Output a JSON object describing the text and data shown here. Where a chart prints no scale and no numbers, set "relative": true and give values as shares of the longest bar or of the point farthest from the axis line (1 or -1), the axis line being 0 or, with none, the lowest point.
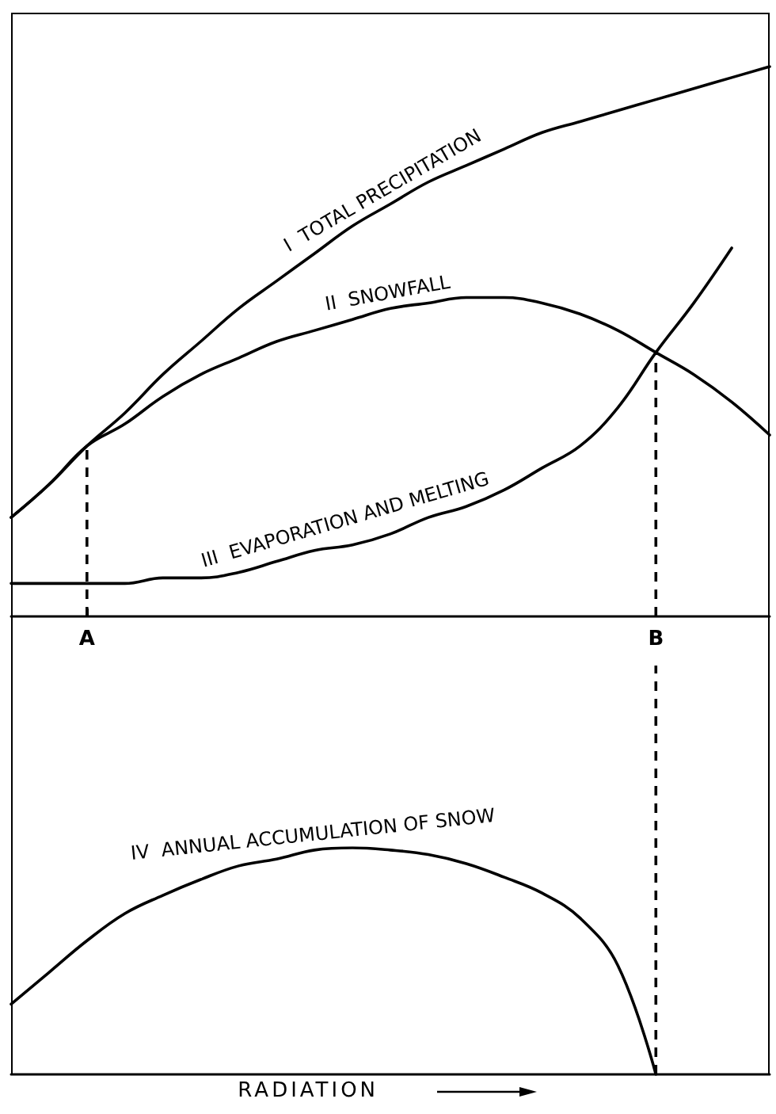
{
  "chart_data": [
    {
      "type": "line",
      "relative": true,
      "categories": [
        null,
        null,
        "A",
        null,
        null,
        null,
        null,
        null,
        null,
        null,
        null,
        null,
        null,
        null,
        null,
        null,
        null,
        "B",
        null,
        null,
        null
      ],
      "series": [
        {
          "name": "I  TOTAL PRECIPITATION",
          "color": "#000000",
          "values": [
            0.18,
            0.24,
            0.31,
            0.37,
            0.44,
            0.5,
            0.56,
            0.61,
            0.66,
            0.71,
            0.75,
            0.79,
            0.82,
            0.85,
            0.88,
            0.9,
            0.92,
            0.94,
            0.96,
            0.98,
            1
          ]
        },
        {
          "name": "II  SNOWFALL",
          "color": "#000000",
          "values": [
            0.18,
            0.24,
            0.31,
            0.35,
            0.4,
            0.44,
            0.47,
            0.5,
            0.52,
            0.54,
            0.56,
            0.57,
            0.58,
            0.58,
            0.57,
            0.55,
            0.52,
            0.48,
            0.44,
            0.39,
            0.33
          ]
        },
        {
          "name": "III  EVAPORATION AND MELTING",
          "color": "#000000",
          "values": [
            0.06,
            0.06,
            0.06,
            0.06,
            0.07,
            0.07,
            0.08,
            0.1,
            0.12,
            0.13,
            0.15,
            0.18,
            0.2,
            0.23,
            0.27,
            0.31,
            0.38,
            0.48,
            0.57,
            0.67,
            null
          ]
        }
      ],
      "ref_lines": [
        {
          "axis": "x",
          "value": "A",
          "line_style": "dashed"
        },
        {
          "axis": "x",
          "value": "B",
          "line_style": "dashed"
        }
      ],
      "tick_labels": "x",
      "grid": false,
      "legend": false,
      "marker": "none",
      "line_style": "solid"
    },
    {
      "type": "line",
      "relative": true,
      "xlabel": "RADIATION",
      "categories": [
        null,
        null,
        "A",
        null,
        null,
        null,
        null,
        null,
        null,
        null,
        null,
        null,
        null,
        null,
        null,
        null,
        null,
        "B",
        null,
        null,
        null
      ],
      "series": [
        {
          "name": "IV  ANNUAL ACCUMULATION OF SNOW",
          "color": "#000000",
          "values": [
            0.31,
            0.45,
            0.59,
            0.71,
            0.79,
            0.86,
            0.92,
            0.95,
            0.99,
            1,
            0.99,
            0.97,
            0.93,
            0.87,
            0.8,
            0.69,
            0.48,
            0,
            null,
            null,
            null
          ]
        }
      ],
      "ref_lines": [
        {
          "axis": "x",
          "value": "B",
          "line_style": "dashed"
        }
      ],
      "tick_labels": false,
      "grid": false,
      "legend": false,
      "marker": "none",
      "line_style": "solid"
    }
  ]
}
